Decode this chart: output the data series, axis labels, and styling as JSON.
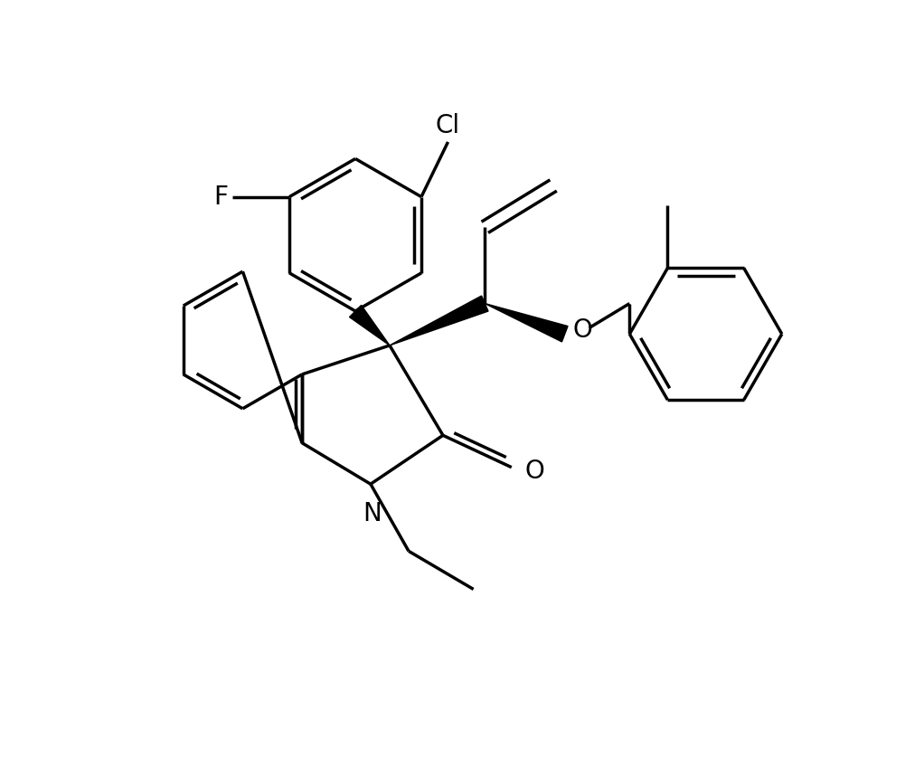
{
  "background_color": "#ffffff",
  "line_color": "#000000",
  "line_width": 2.5,
  "font_size": 20,
  "figsize": [
    10.22,
    8.48
  ],
  "dpi": 100,
  "xlim": [
    -1.0,
    9.5
  ],
  "ylim": [
    -0.5,
    9.5
  ]
}
